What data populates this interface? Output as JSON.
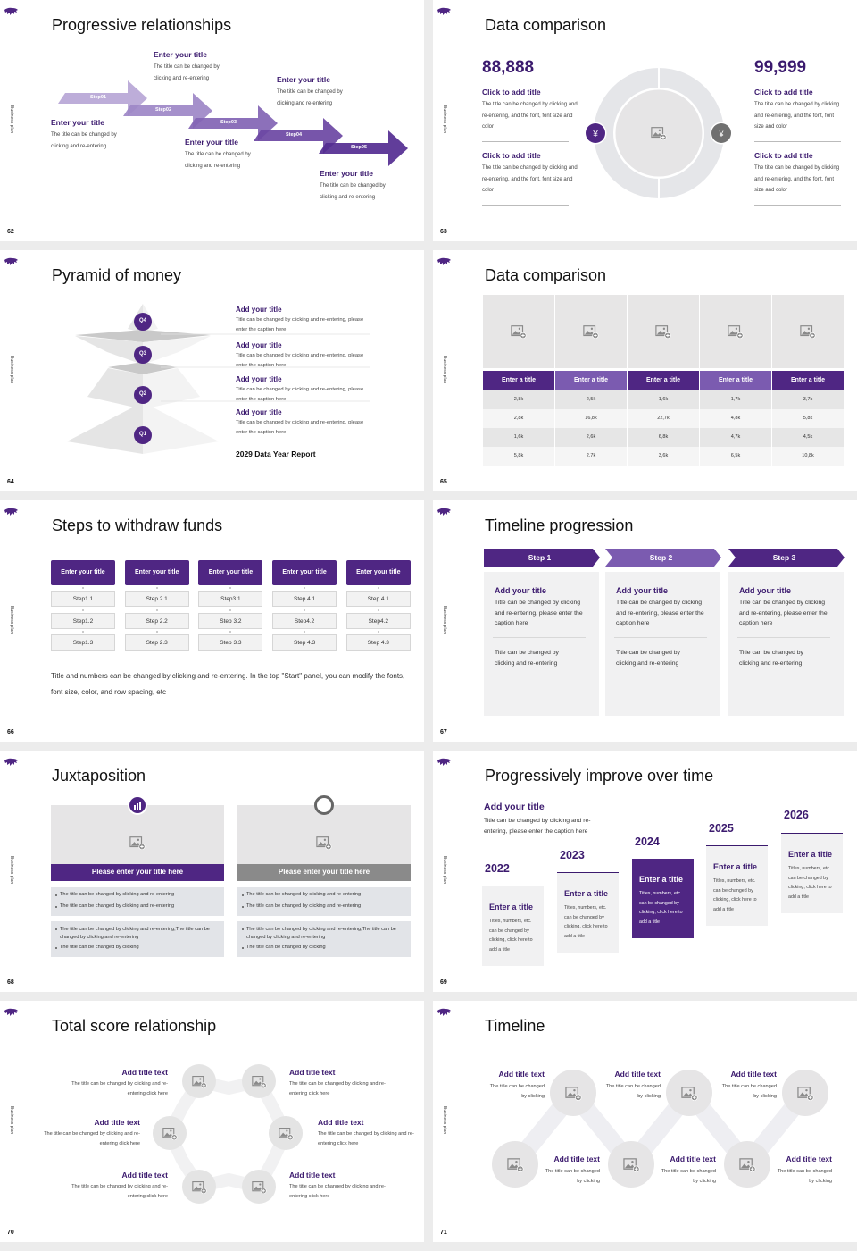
{
  "side_label": "Business plan",
  "colors": {
    "primary": "#4f2683",
    "primary_light": "#7b5bb0",
    "heading": "#3b1a6e",
    "panel": "#f1f1f2",
    "gray": "#8a8a8a"
  },
  "slides": [
    {
      "page": "62",
      "title": "Progressive relationships",
      "arrow_colors": [
        "#b7a6d6",
        "#9d87c7",
        "#8264b4",
        "#6b47a3",
        "#542c91"
      ],
      "steps": [
        {
          "label": "Step01",
          "title": "Enter your title",
          "body": "The title can be changed by clicking and re-entering"
        },
        {
          "label": "Step02",
          "title": "Enter your title",
          "body": "The title can be changed by clicking and re-entering"
        },
        {
          "label": "Step03",
          "title": "Enter your title",
          "body": "The title can be changed by clicking and re-entering"
        },
        {
          "label": "Step04",
          "title": "Enter your title",
          "body": "The title can be changed by clicking and re-entering"
        },
        {
          "label": "Step05",
          "title": "Enter your title",
          "body": "The title can be changed by clicking and re-entering"
        }
      ]
    },
    {
      "page": "63",
      "title": "Data comparison",
      "left": {
        "number": "88,888",
        "icon": "money-bag-yen-icon",
        "items": [
          {
            "title": "Click to add title",
            "body": "The title can be changed by clicking and re-entering, and the font, font size and color"
          },
          {
            "title": "Click to add title",
            "body": "The title can be changed by clicking and re-entering, and the font, font size and color"
          }
        ]
      },
      "right": {
        "number": "99,999",
        "icon": "coin-bag-icon",
        "items": [
          {
            "title": "Click to add title",
            "body": "The title can be changed by clicking and re-entering, and the font, font size and color"
          },
          {
            "title": "Click to add title",
            "body": "The title can be changed by clicking and re-entering, and the font, font size and color"
          }
        ]
      }
    },
    {
      "page": "64",
      "title": "Pyramid of money",
      "levels": [
        "Q4",
        "Q3",
        "Q2",
        "Q1"
      ],
      "items": [
        {
          "title": "Add your title",
          "body": "Title can be changed by clicking and re-entering, please enter the caption here"
        },
        {
          "title": "Add your title",
          "body": "Title can be changed by clicking and re-entering, please enter the caption here"
        },
        {
          "title": "Add your title",
          "body": "Title can be changed by clicking and re-entering, please enter the caption here"
        },
        {
          "title": "Add your title",
          "body": "Title can be changed by clicking and re-entering, please enter the caption here"
        }
      ],
      "report": "2029 Data Year Report"
    },
    {
      "page": "65",
      "title": "Data comparison",
      "table": {
        "headers": [
          "Enter a title",
          "Enter a title",
          "Enter a title",
          "Enter a title",
          "Enter a title"
        ],
        "rows": [
          [
            "2,8k",
            "2,5k",
            "1,6k",
            "1,7k",
            "3,7k"
          ],
          [
            "2,8k",
            "16,8k",
            "22,7k",
            "4,8k",
            "5,8k"
          ],
          [
            "1,6k",
            "2,6k",
            "6,8k",
            "4,7k",
            "4,5k"
          ],
          [
            "5,8k",
            "2.7k",
            "3,6k",
            "6,5k",
            "10,8k"
          ]
        ]
      }
    },
    {
      "page": "66",
      "title": "Steps to withdraw funds",
      "columns": [
        {
          "header": "Enter your title",
          "steps": [
            "Step1.1",
            "Step1.2",
            "Step1.3"
          ]
        },
        {
          "header": "Enter your title",
          "steps": [
            "Step 2.1",
            "Step 2.2",
            "Step 2.3"
          ]
        },
        {
          "header": "Enter your title",
          "steps": [
            "Step3.1",
            "Step 3.2",
            "Step 3.3"
          ]
        },
        {
          "header": "Enter your title",
          "steps": [
            "Step 4.1",
            "Step4.2",
            "Step 4.3"
          ]
        },
        {
          "header": "Enter your title",
          "steps": [
            "Step 4.1",
            "Step4.2",
            "Step 4.3"
          ]
        }
      ],
      "footer": "Title and numbers can be changed by clicking and re-entering. In the top \"Start\" panel, you can modify the fonts, font size, color, and row spacing, etc"
    },
    {
      "page": "67",
      "title": "Timeline progression",
      "steps": [
        {
          "label": "Step 1",
          "title": "Add your title",
          "body": "Title can be changed by clicking and re-entering, please enter the caption here",
          "note": "Title can be changed by clicking and re-entering"
        },
        {
          "label": "Step 2",
          "title": "Add your title",
          "body": "Title can be changed by clicking and re-entering, please enter the caption here",
          "note": "Title can be changed by clicking and re-entering"
        },
        {
          "label": "Step 3",
          "title": "Add your title",
          "body": "Title can be changed by clicking and re-entering, please enter the caption here",
          "note": "Title can be changed by clicking and re-entering"
        }
      ]
    },
    {
      "page": "68",
      "title": "Juxtaposition",
      "panels": [
        {
          "icon": "bar-chart-icon",
          "bar_title": "Please enter your title here",
          "bar_color": "#4f2683",
          "group1": [
            "The title can be changed by clicking and re-entering",
            "The title can be changed by clicking and re-entering"
          ],
          "group2": [
            "The title can be changed by clicking and re-entering,The title can be changed by clicking and re-entering",
            "The title can be changed by clicking"
          ]
        },
        {
          "icon": "pie-chart-icon",
          "bar_title": "Please enter your title here",
          "bar_color": "#8a8a8a",
          "group1": [
            "The title can be changed by clicking and re-entering",
            "The title can be changed by clicking and re-entering"
          ],
          "group2": [
            "The title can be changed by clicking and re-entering,The title can be changed by clicking and re-entering",
            "The title can be changed by clicking"
          ]
        }
      ]
    },
    {
      "page": "69",
      "title": "Progressively improve over time",
      "intro": {
        "title": "Add your title",
        "body": "Title can be changed by clicking and re-entering, please enter the caption here"
      },
      "years": [
        {
          "year": "2022",
          "title": "Enter a title",
          "body": "Titles, numbers, etc. can be changed by clicking, click here to add a title",
          "highlight": false
        },
        {
          "year": "2023",
          "title": "Enter a title",
          "body": "Titles, numbers, etc. can be changed by clicking, click here to add a title",
          "highlight": false
        },
        {
          "year": "2024",
          "title": "Enter a title",
          "body": "Titles, numbers, etc. can be changed by clicking, click here to add a title",
          "highlight": true
        },
        {
          "year": "2025",
          "title": "Enter a title",
          "body": "Titles, numbers, etc. can be changed by clicking, click here to add a title",
          "highlight": false
        },
        {
          "year": "2026",
          "title": "Enter a title",
          "body": "Titles, numbers, etc. can be changed by clicking, click here to add a title",
          "highlight": false
        }
      ]
    },
    {
      "page": "70",
      "title": "Total score relationship",
      "items": [
        {
          "title": "Add title text",
          "body": "The title can be changed by clicking and re-entering click here"
        },
        {
          "title": "Add title text",
          "body": "The title can be changed by clicking and re-entering click here"
        },
        {
          "title": "Add title text",
          "body": "The title can be changed by clicking and re-entering click here"
        },
        {
          "title": "Add title text",
          "body": "The title can be changed by clicking and re-entering click here"
        },
        {
          "title": "Add title text",
          "body": "The title can be changed by clicking and re-entering click here"
        },
        {
          "title": "Add title text",
          "body": "The title can be changed by clicking and re-entering click here"
        }
      ]
    },
    {
      "page": "71",
      "title": "Timeline",
      "items": [
        {
          "title": "Add title text",
          "body": "The title can be changed by clicking"
        },
        {
          "title": "Add title text",
          "body": "The title can be changed by clicking"
        },
        {
          "title": "Add title text",
          "body": "The title can be changed by clicking"
        },
        {
          "title": "Add title text",
          "body": "The title can be changed by clicking"
        },
        {
          "title": "Add title text",
          "body": "The title can be changed by clicking"
        },
        {
          "title": "Add title text",
          "body": "The title can be changed by clicking"
        }
      ]
    }
  ]
}
